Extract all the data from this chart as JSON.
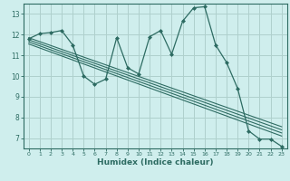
{
  "xlabel": "Humidex (Indice chaleur)",
  "bg_color": "#cfeeed",
  "grid_color": "#afd0cc",
  "line_color": "#2d6b62",
  "xlim": [
    -0.5,
    23.5
  ],
  "ylim": [
    6.5,
    13.5
  ],
  "xticks": [
    0,
    1,
    2,
    3,
    4,
    5,
    6,
    7,
    8,
    9,
    10,
    11,
    12,
    13,
    14,
    15,
    16,
    17,
    18,
    19,
    20,
    21,
    22,
    23
  ],
  "yticks": [
    7,
    8,
    9,
    10,
    11,
    12,
    13
  ],
  "main_x": [
    0,
    1,
    2,
    3,
    4,
    5,
    6,
    7,
    8,
    9,
    10,
    11,
    12,
    13,
    14,
    15,
    16,
    17,
    18,
    19,
    20,
    21,
    22,
    23
  ],
  "main_y": [
    11.8,
    12.05,
    12.1,
    12.2,
    11.5,
    10.0,
    9.6,
    9.85,
    11.85,
    10.4,
    10.1,
    11.9,
    12.2,
    11.05,
    12.65,
    13.3,
    13.35,
    11.5,
    10.65,
    9.4,
    7.35,
    6.95,
    6.95,
    6.6
  ],
  "trend1_x": [
    0,
    23
  ],
  "trend1_y": [
    11.85,
    7.55
  ],
  "trend2_x": [
    0,
    23
  ],
  "trend2_y": [
    11.75,
    7.4
  ],
  "trend3_x": [
    0,
    23
  ],
  "trend3_y": [
    11.65,
    7.25
  ],
  "trend4_x": [
    0,
    23
  ],
  "trend4_y": [
    11.55,
    7.1
  ]
}
